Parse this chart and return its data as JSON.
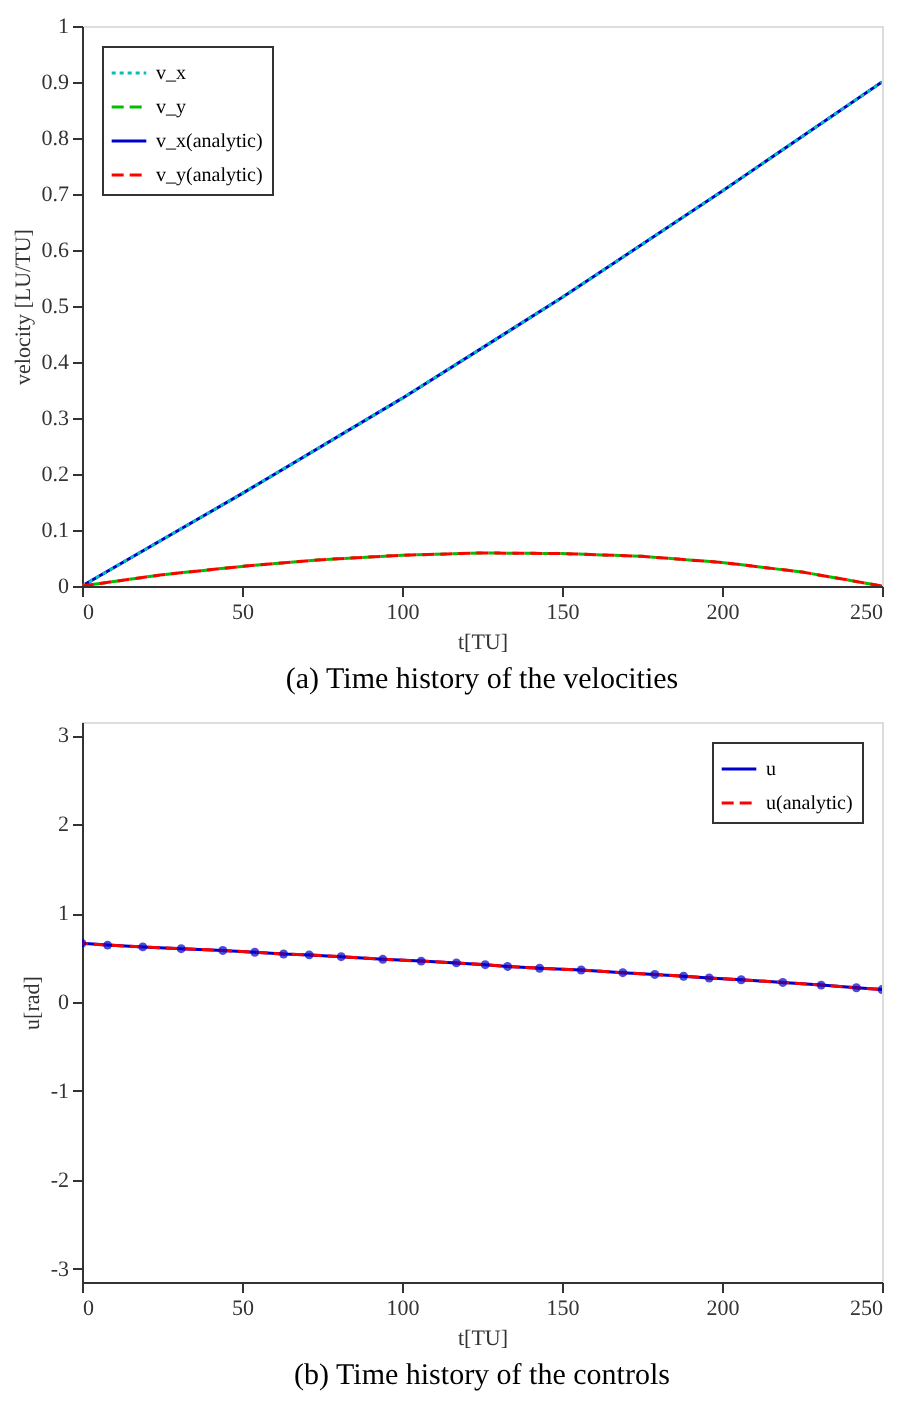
{
  "chart_data": [
    {
      "type": "line",
      "title": "(a) Time history of the velocities",
      "xlabel": "t[TU]",
      "ylabel": "velocity [LU/TU]",
      "xlim": [
        0,
        250
      ],
      "xticks": [
        0,
        50,
        100,
        150,
        200,
        250
      ],
      "ylim": [
        0,
        1
      ],
      "yticks": [
        0,
        0.1,
        0.2,
        0.3,
        0.4,
        0.5,
        0.6,
        0.7,
        0.8,
        0.9,
        1
      ],
      "grid": false,
      "legend": "top left",
      "series": [
        {
          "name": "v_x",
          "color": "#00bfbf",
          "line_style": "dotted",
          "x": [
            0,
            50,
            100,
            150,
            200,
            250
          ],
          "values": [
            0,
            0.165,
            0.335,
            0.515,
            0.705,
            0.9
          ]
        },
        {
          "name": "v_y",
          "color": "#00bf00",
          "line_style": "dashed",
          "x": [
            0,
            25,
            50,
            75,
            100,
            125,
            150,
            175,
            200,
            225,
            250
          ],
          "values": [
            0,
            0.02,
            0.035,
            0.047,
            0.055,
            0.059,
            0.058,
            0.053,
            0.042,
            0.025,
            0
          ]
        },
        {
          "name": "v_x(analytic)",
          "color": "#0000cc",
          "line_style": "solid",
          "x": [
            0,
            50,
            100,
            150,
            200,
            250
          ],
          "values": [
            0,
            0.165,
            0.335,
            0.515,
            0.705,
            0.9
          ]
        },
        {
          "name": "v_y(analytic)",
          "color": "#ff0000",
          "line_style": "dashed",
          "x": [
            0,
            25,
            50,
            75,
            100,
            125,
            150,
            175,
            200,
            225,
            250
          ],
          "values": [
            0,
            0.02,
            0.035,
            0.047,
            0.055,
            0.059,
            0.058,
            0.053,
            0.042,
            0.025,
            0
          ]
        }
      ]
    },
    {
      "type": "line",
      "title": "(b) Time history of the controls",
      "xlabel": "t[TU]",
      "ylabel": "u[rad]",
      "xlim": [
        0,
        250
      ],
      "xticks": [
        0,
        50,
        100,
        150,
        200,
        250
      ],
      "ylim": [
        -3.15,
        3.15
      ],
      "yticks": [
        -3,
        -2,
        -1,
        0,
        1,
        2,
        3
      ],
      "grid": false,
      "legend": "top right",
      "series": [
        {
          "name": "u",
          "color": "#0000cc",
          "line_style": "solid",
          "marker": "circle",
          "x": [
            0,
            8,
            19,
            31,
            44,
            54,
            63,
            71,
            81,
            94,
            106,
            117,
            126,
            133,
            143,
            156,
            169,
            179,
            188,
            196,
            206,
            219,
            231,
            242,
            250
          ],
          "values": [
            0.66,
            0.64,
            0.62,
            0.6,
            0.58,
            0.56,
            0.54,
            0.53,
            0.51,
            0.48,
            0.46,
            0.44,
            0.42,
            0.4,
            0.38,
            0.36,
            0.33,
            0.31,
            0.29,
            0.27,
            0.25,
            0.22,
            0.19,
            0.16,
            0.14
          ]
        },
        {
          "name": "u(analytic)",
          "color": "#ff0000",
          "line_style": "dashed",
          "x": [
            0,
            8,
            19,
            31,
            44,
            54,
            63,
            71,
            81,
            94,
            106,
            117,
            126,
            133,
            143,
            156,
            169,
            179,
            188,
            196,
            206,
            219,
            231,
            242,
            250
          ],
          "values": [
            0.66,
            0.64,
            0.62,
            0.6,
            0.58,
            0.56,
            0.54,
            0.53,
            0.51,
            0.48,
            0.46,
            0.44,
            0.42,
            0.4,
            0.38,
            0.36,
            0.33,
            0.31,
            0.29,
            0.27,
            0.25,
            0.22,
            0.19,
            0.16,
            0.14
          ]
        }
      ]
    }
  ]
}
